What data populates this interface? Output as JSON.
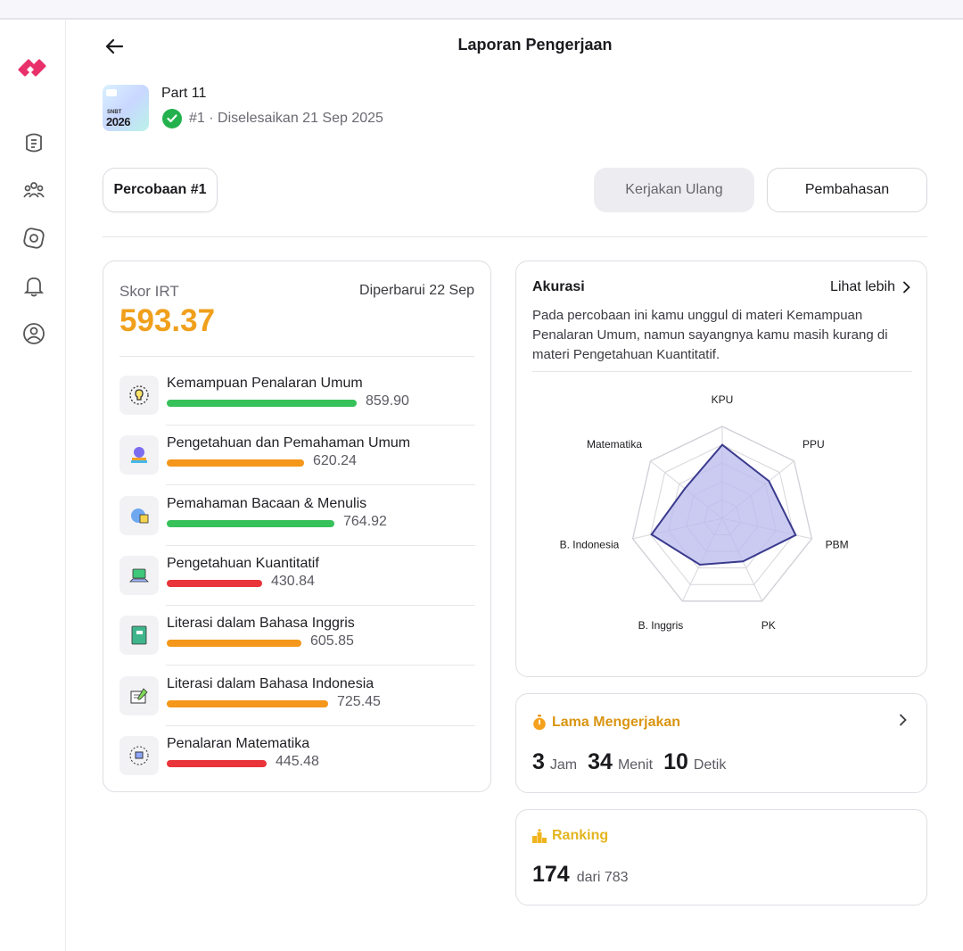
{
  "header": {
    "title": "Laporan Pengerjaan"
  },
  "sidebar": {
    "items": [
      {
        "name": "learn"
      },
      {
        "name": "community"
      },
      {
        "name": "explore"
      },
      {
        "name": "notifications"
      },
      {
        "name": "profile"
      }
    ]
  },
  "exam": {
    "thumb_small": "SNBT",
    "thumb_year": "2026",
    "title": "Part 11",
    "meta": "#1 · Diselesaikan 21 Sep 2025"
  },
  "actions": {
    "attempt_label": "Percobaan #1",
    "retry_label": "Kerjakan Ulang",
    "review_label": "Pembahasan"
  },
  "score": {
    "label": "Skor IRT",
    "updated": "Diperbarui 22 Sep",
    "value": "593.37",
    "subjects": [
      {
        "name": "Kemampuan Penalaran Umum",
        "value": "859.90",
        "color": "#37c15a",
        "fill": 0.86,
        "icon": "lightbulb-icon"
      },
      {
        "name": "Pengetahuan dan Pemahaman Umum",
        "value": "620.24",
        "color": "#f4971a",
        "fill": 0.62,
        "icon": "globe-book-icon"
      },
      {
        "name": "Pemahaman Bacaan & Menulis",
        "value": "764.92",
        "color": "#37c15a",
        "fill": 0.76,
        "icon": "reading-icon"
      },
      {
        "name": "Pengetahuan Kuantitatif",
        "value": "430.84",
        "color": "#e8343a",
        "fill": 0.43,
        "icon": "laptop-icon"
      },
      {
        "name": "Literasi dalam Bahasa Inggris",
        "value": "605.85",
        "color": "#f4971a",
        "fill": 0.61,
        "icon": "book-icon"
      },
      {
        "name": "Literasi dalam Bahasa Indonesia",
        "value": "725.45",
        "color": "#f4971a",
        "fill": 0.73,
        "icon": "writing-icon"
      },
      {
        "name": "Penalaran Matematika",
        "value": "445.48",
        "color": "#e8343a",
        "fill": 0.45,
        "icon": "math-head-icon"
      }
    ]
  },
  "accuracy": {
    "title": "Akurasi",
    "more": "Lihat lebih",
    "description": "Pada percobaan ini kamu unggul di materi Kemampuan Penalaran Umum, namun sayangnya kamu masih kurang di materi Pengetahuan Kuantitatif.",
    "axes": [
      "KPU",
      "PPU",
      "PBM",
      "PK",
      "B. Inggris",
      "B. Indonesia",
      "Matematika"
    ],
    "values": [
      0.8,
      0.65,
      0.82,
      0.52,
      0.56,
      0.79,
      0.52
    ],
    "levels": 5,
    "accent": "#3a3a8e",
    "fill": "#b9b9ee"
  },
  "duration": {
    "title": "Lama Mengerjakan",
    "hours": "3",
    "hours_unit": "Jam",
    "minutes": "34",
    "minutes_unit": "Menit",
    "seconds": "10",
    "seconds_unit": "Detik",
    "color": "#d99512"
  },
  "ranking": {
    "title": "Ranking",
    "rank": "174",
    "of": "dari 783",
    "color": "#e3b520"
  }
}
